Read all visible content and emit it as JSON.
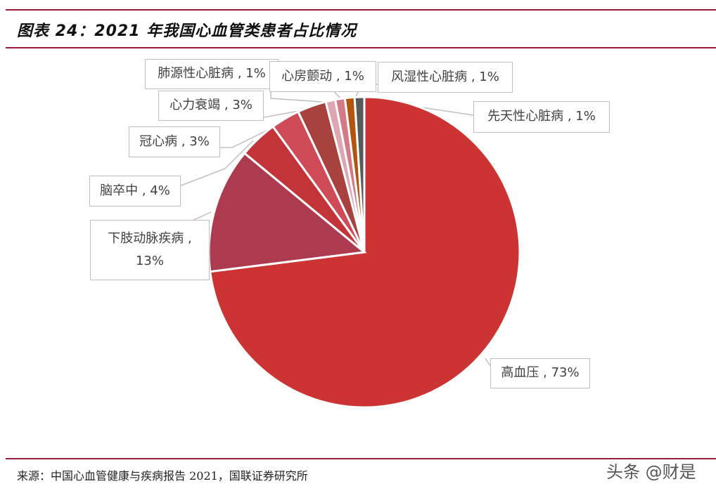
{
  "header": {
    "title": "图表 24：2021 年我国心血管类患者占比情况"
  },
  "footer": {
    "source": "来源：中国心血管健康与疾病报告 2021，国联证券研究所",
    "watermark": "头条 @财是"
  },
  "colors": {
    "rule": "#9b1b3a"
  },
  "chart_data": {
    "type": "pie",
    "title": "2021 年我国心血管类患者占比情况",
    "start_angle_deg": 0,
    "direction": "clockwise",
    "slices": [
      {
        "name": "高血压",
        "value": 73,
        "label": "高血压 , 73%",
        "color": "#cc3333"
      },
      {
        "name": "下肢动脉疾病",
        "value": 13,
        "label": "下肢动脉疾病 , 13%",
        "color": "#ad3b4f"
      },
      {
        "name": "脑卒中",
        "value": 4,
        "label": "脑卒中 , 4%",
        "color": "#c23437"
      },
      {
        "name": "冠心病",
        "value": 3,
        "label": "冠心病 , 3%",
        "color": "#cf4b58"
      },
      {
        "name": "心力衰竭",
        "value": 3,
        "label": "心力衰竭 , 3%",
        "color": "#a8423f"
      },
      {
        "name": "肺源性心脏病",
        "value": 1,
        "label": "肺源性心脏病 , 1%",
        "color": "#dea6b0"
      },
      {
        "name": "心房颤动",
        "value": 1,
        "label": "心房颤动 , 1%",
        "color": "#d47a86"
      },
      {
        "name": "风湿性心脏病",
        "value": 1,
        "label": "风湿性心脏病 , 1%",
        "color": "#b3540f"
      },
      {
        "name": "先天性心脏病",
        "value": 1,
        "label": "先天性心脏病 , 1%",
        "color": "#595959"
      }
    ]
  },
  "labels": {
    "l0": "高血压 , 73%",
    "l1a": "下肢动脉疾病 ,",
    "l1b": "13%",
    "l2": "脑卒中 , 4%",
    "l3": "冠心病 , 3%",
    "l4": "心力衰竭 , 3%",
    "l5": "肺源性心脏病 , 1%",
    "l6": "心房颤动 , 1%",
    "l7": "风湿性心脏病 , 1%",
    "l8": "先天性心脏病 , 1%"
  }
}
